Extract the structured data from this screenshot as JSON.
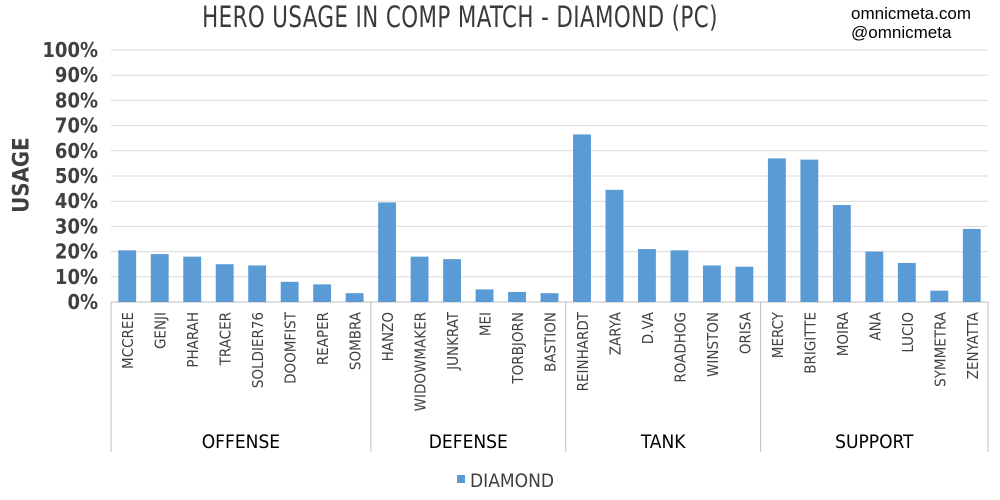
{
  "chart_data": {
    "type": "bar",
    "title": "HERO USAGE IN COMP MATCH - DIAMOND (PC)",
    "ylabel": "USAGE",
    "xlabel": "",
    "ylim": [
      0,
      100
    ],
    "yticks": [
      "0%",
      "10%",
      "20%",
      "30%",
      "40%",
      "50%",
      "60%",
      "70%",
      "80%",
      "90%",
      "100%"
    ],
    "grid": true,
    "legend_position": "bottom",
    "categories": [
      "MCCREE",
      "GENJI",
      "PHARAH",
      "TRACER",
      "SOLDIER76",
      "DOOMFIST",
      "REAPER",
      "SOMBRA",
      "HANZO",
      "WIDOWMAKER",
      "JUNKRAT",
      "MEI",
      "TORBJORN",
      "BASTION",
      "REINHARDT",
      "ZARYA",
      "D.VA",
      "ROADHOG",
      "WINSTON",
      "ORISA",
      "MERCY",
      "BRIGITTE",
      "MOIRA",
      "ANA",
      "LUCIO",
      "SYMMETRA",
      "ZENYATTA"
    ],
    "groups": [
      {
        "label": "OFFENSE",
        "count": 8
      },
      {
        "label": "DEFENSE",
        "count": 6
      },
      {
        "label": "TANK",
        "count": 6
      },
      {
        "label": "SUPPORT",
        "count": 7
      }
    ],
    "series": [
      {
        "name": "DIAMOND",
        "color": "#5b9bd5",
        "values": [
          20.5,
          19,
          18,
          15,
          14.5,
          8,
          7,
          3.5,
          39.5,
          18,
          17,
          5,
          4,
          3.5,
          66.5,
          44.5,
          21,
          20.5,
          14.5,
          14,
          57,
          56.5,
          38.5,
          20,
          15.5,
          4.5,
          29
        ]
      }
    ]
  },
  "watermark": {
    "site": "omnicmeta.com",
    "handle": "@omnicmeta"
  }
}
